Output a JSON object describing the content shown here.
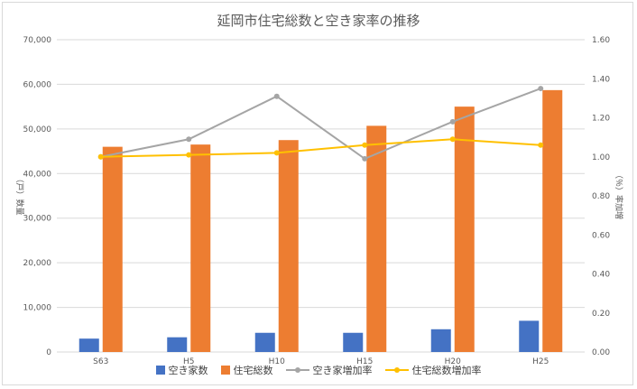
{
  "chart_data": {
    "type": "bar+line",
    "title": "延岡市住宅総数と空き家率の推移",
    "categories": [
      "S63",
      "H5",
      "H10",
      "H15",
      "H20",
      "H25"
    ],
    "bar_series": [
      {
        "name": "空き家数",
        "color": "#4472C4",
        "values": [
          3000,
          3300,
          4300,
          4300,
          5100,
          7000
        ]
      },
      {
        "name": "住宅総数",
        "color": "#ED7D31",
        "values": [
          46000,
          46500,
          47500,
          50700,
          55000,
          58700
        ]
      }
    ],
    "line_series": [
      {
        "name": "空き家増加率",
        "color": "#A5A5A5",
        "values": [
          1.0,
          1.09,
          1.31,
          0.99,
          1.18,
          1.35
        ]
      },
      {
        "name": "住宅総数増加率",
        "color": "#FFC000",
        "values": [
          1.0,
          1.01,
          1.02,
          1.06,
          1.09,
          1.06
        ]
      }
    ],
    "ylabel_left": "（戸）数量",
    "ylabel_right": "（％）率加増",
    "ylim_left": [
      0,
      70000
    ],
    "ylim_right": [
      0,
      1.6
    ],
    "yticks_left": [
      "0",
      "10,000",
      "20,000",
      "30,000",
      "40,000",
      "50,000",
      "60,000",
      "70,000"
    ],
    "yticks_right": [
      "0.00",
      "0.20",
      "0.40",
      "0.60",
      "0.80",
      "1.00",
      "1.20",
      "1.40",
      "1.60"
    ],
    "grid": true,
    "legend_position": "bottom"
  }
}
